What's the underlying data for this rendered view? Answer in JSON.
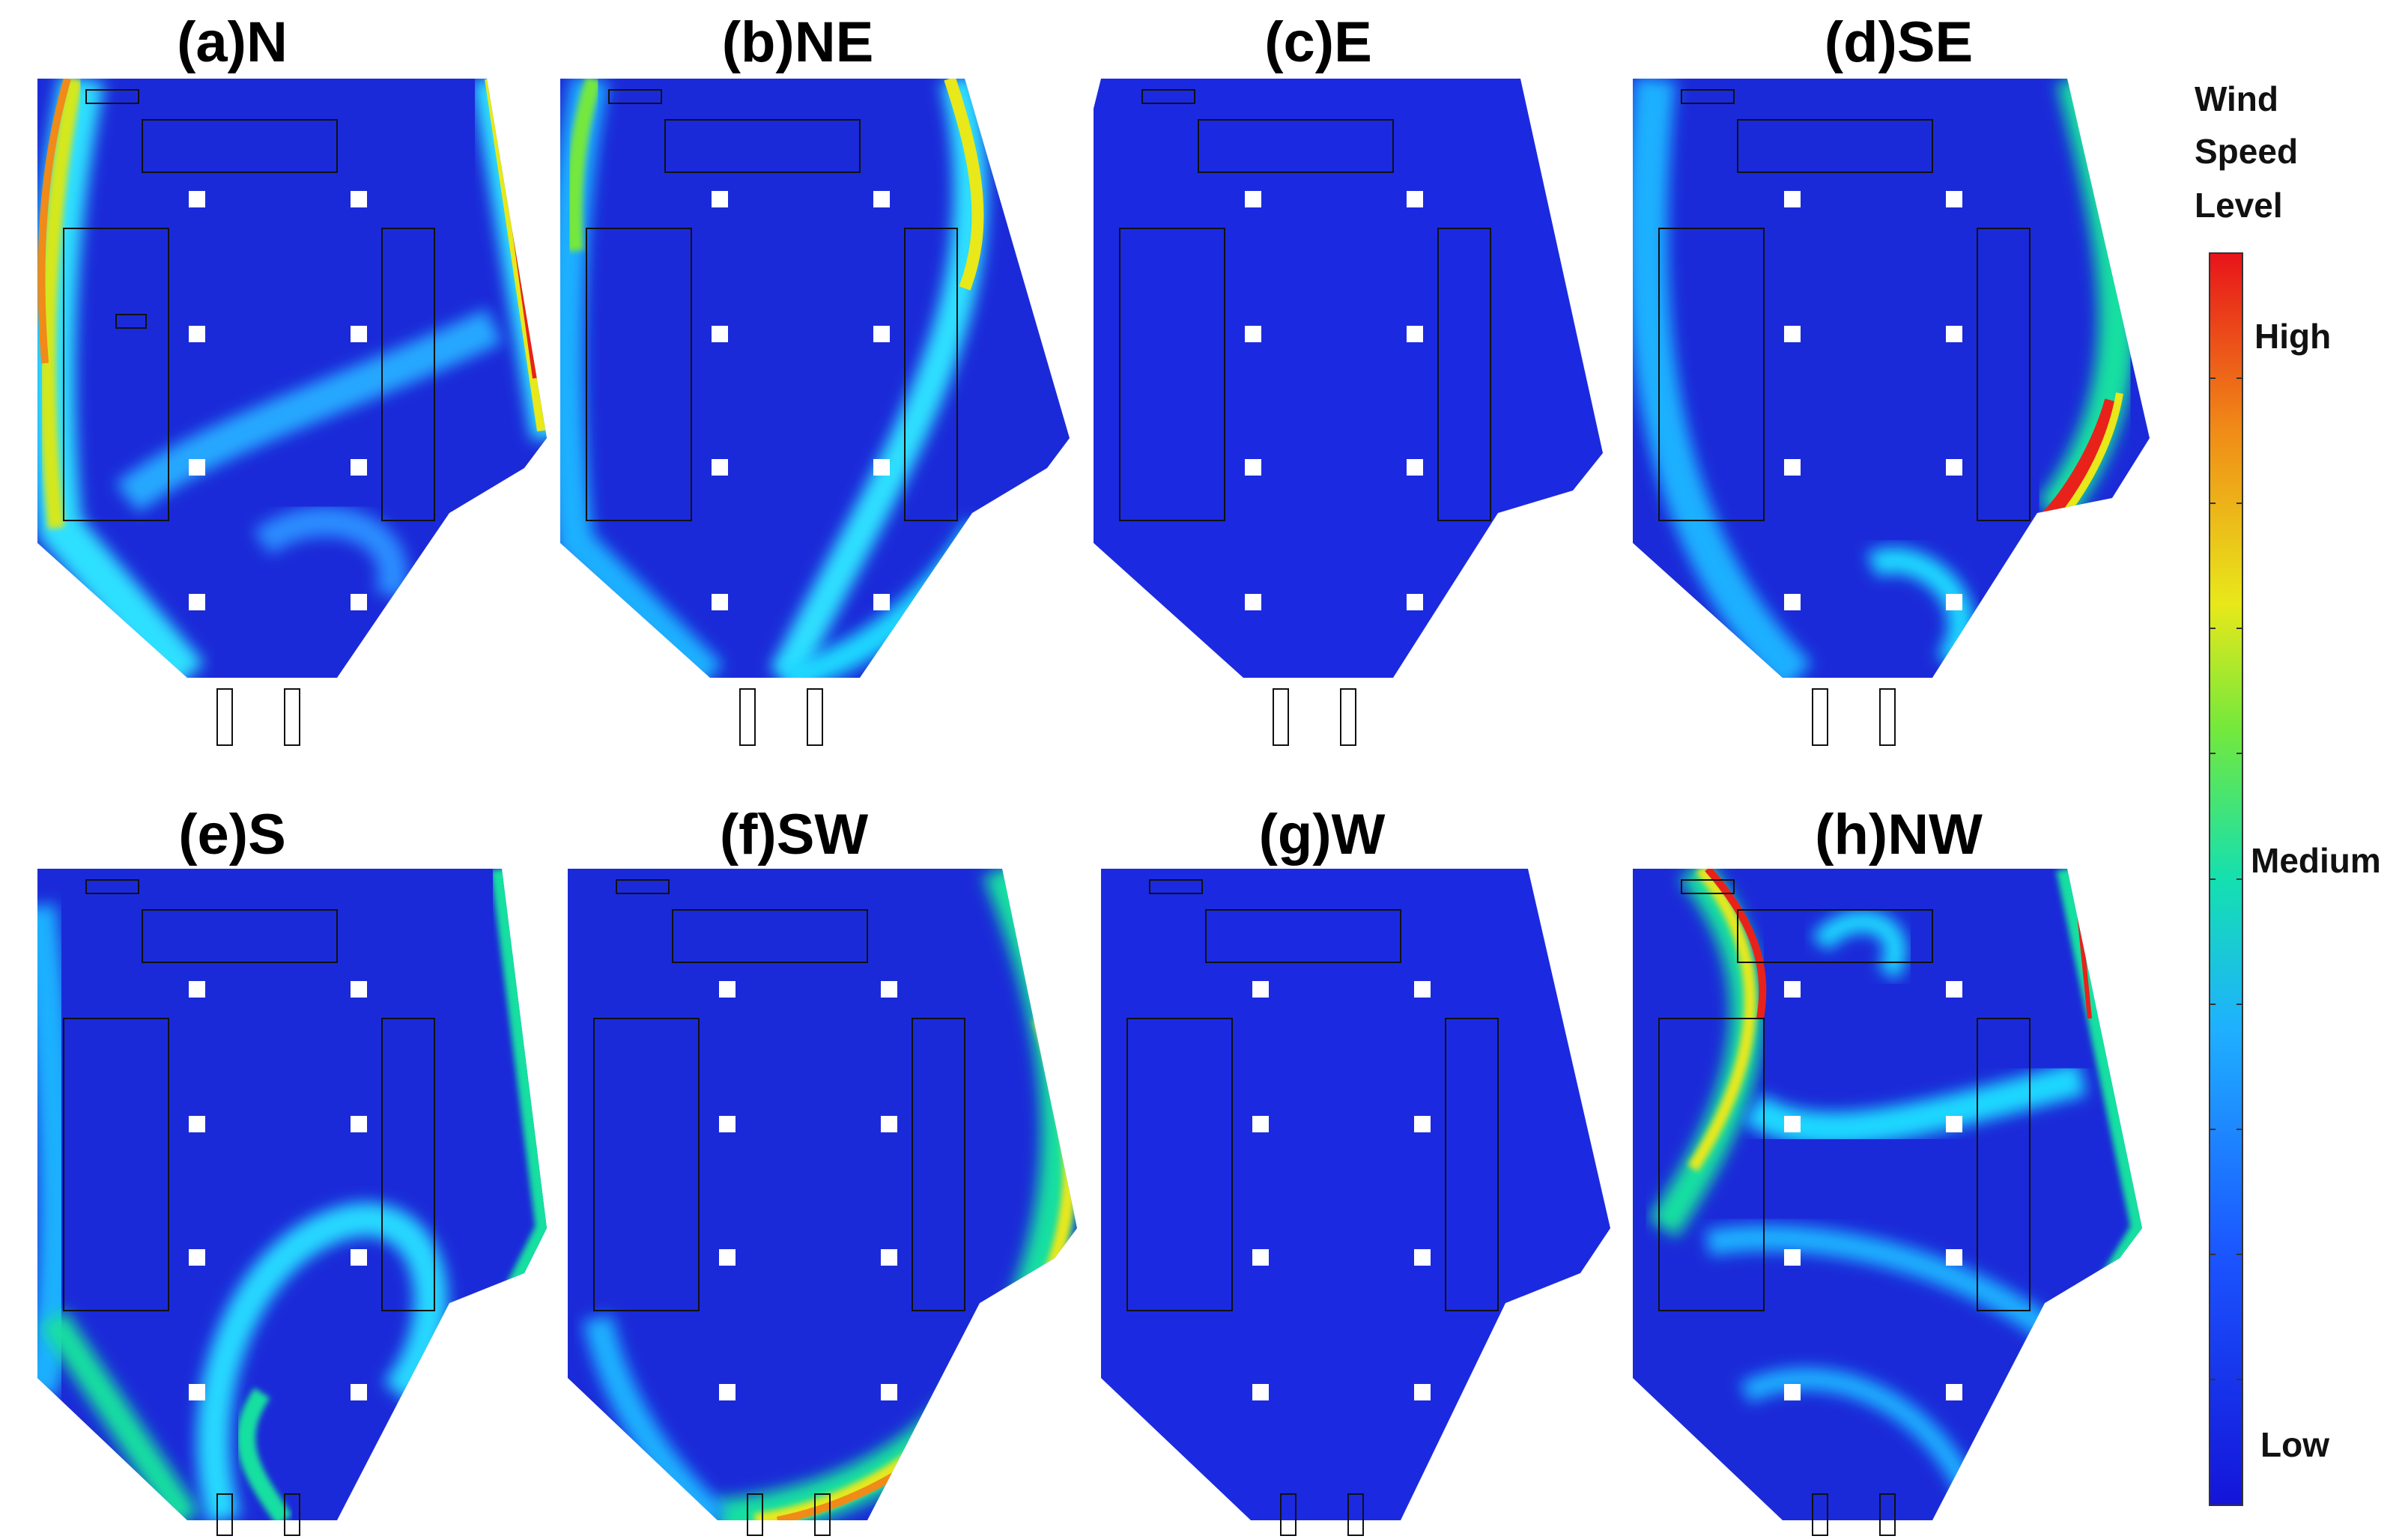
{
  "figure": {
    "panels": [
      {
        "id": "a",
        "label": "(a)N",
        "direction": "N"
      },
      {
        "id": "b",
        "label": "(b)NE",
        "direction": "NE"
      },
      {
        "id": "c",
        "label": "(c)E",
        "direction": "E"
      },
      {
        "id": "d",
        "label": "(d)SE",
        "direction": "SE"
      },
      {
        "id": "e",
        "label": "(e)S",
        "direction": "S"
      },
      {
        "id": "f",
        "label": "(f)SW",
        "direction": "SW"
      },
      {
        "id": "g",
        "label": "(g)W",
        "direction": "W"
      },
      {
        "id": "h",
        "label": "(h)NW",
        "direction": "NW"
      }
    ],
    "legend": {
      "title_lines": [
        "Wind",
        "Speed",
        "Level"
      ],
      "levels": {
        "high": "High",
        "medium": "Medium",
        "low": "Low"
      },
      "colors": {
        "low": "#1a1ee6",
        "medium": "#14e0a0",
        "high": "#e8221a",
        "cyan": "#1fd8ff",
        "yellow": "#e8e81a",
        "orange": "#f08a18"
      }
    }
  }
}
